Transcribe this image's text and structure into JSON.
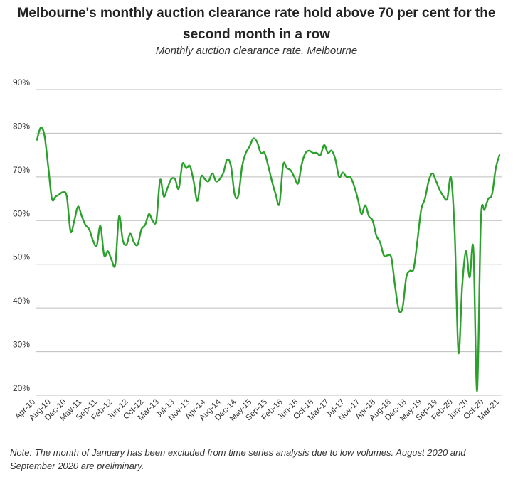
{
  "title": "Melbourne's monthly auction clearance rate hold above 70 per cent for the second month in a row",
  "subtitle": "Monthly auction clearance rate, Melbourne",
  "note": "Note: The month of January has been excluded from time series analysis due to low volumes. August 2020 and September 2020 are preliminary.",
  "chart_data": {
    "type": "line",
    "ylim": [
      20,
      90
    ],
    "yticks": [
      20,
      30,
      40,
      50,
      60,
      70,
      80,
      90
    ],
    "ytick_suffix": "%",
    "grid": true,
    "legend": "none",
    "line_color": "#2ca02c",
    "xtick_labels": [
      "Apr-10",
      "Aug-10",
      "Dec-10",
      "May-11",
      "Sep-11",
      "Feb-12",
      "Jun-12",
      "Oct-12",
      "Mar-13",
      "Jul-13",
      "Nov-13",
      "Apr-14",
      "Aug-14",
      "Dec-14",
      "May-15",
      "Sep-15",
      "Feb-16",
      "Jun-16",
      "Oct-16",
      "Mar-17",
      "Jul-17",
      "Nov-17",
      "Apr-18",
      "Aug-18",
      "Dec-18",
      "May-19",
      "Sep-19",
      "Feb-20",
      "Jun-20",
      "Oct-20",
      "Mar-21"
    ],
    "series": [
      {
        "values": [
          78.5,
          81.3,
          79.5,
          72.5,
          65,
          65.5,
          66,
          66.5,
          65.5,
          57.5,
          60,
          63.2,
          61,
          59,
          58,
          55.5,
          54.2,
          58.8,
          52,
          53,
          51,
          50,
          61,
          55.5,
          54.5,
          57,
          55,
          54.5,
          58,
          59,
          61.5,
          60,
          60,
          69.3,
          65.5,
          67.5,
          69.5,
          69.5,
          67.3,
          73,
          72,
          72.5,
          69,
          64.5,
          70,
          69.5,
          69,
          70.8,
          69,
          69.5,
          71,
          74,
          72.5,
          66,
          65.8,
          72.5,
          75.5,
          77,
          78.8,
          78,
          75.5,
          75.5,
          72.5,
          69,
          66,
          63.8,
          72.8,
          72,
          71.5,
          70,
          68.5,
          73,
          75.5,
          76,
          75.5,
          75.5,
          75,
          77.3,
          75.5,
          76,
          74,
          70,
          71,
          70,
          70,
          68,
          65,
          61.5,
          63.5,
          61,
          60,
          56.5,
          55,
          52,
          52,
          51.5,
          45,
          39.5,
          40,
          47,
          48.5,
          49,
          55.5,
          62.5,
          65,
          69,
          70.8,
          69,
          67,
          65.5,
          65,
          69.8,
          57,
          29.8,
          45,
          53,
          47,
          53.5,
          21,
          60,
          62.5,
          65,
          66,
          72,
          75
        ]
      }
    ]
  }
}
